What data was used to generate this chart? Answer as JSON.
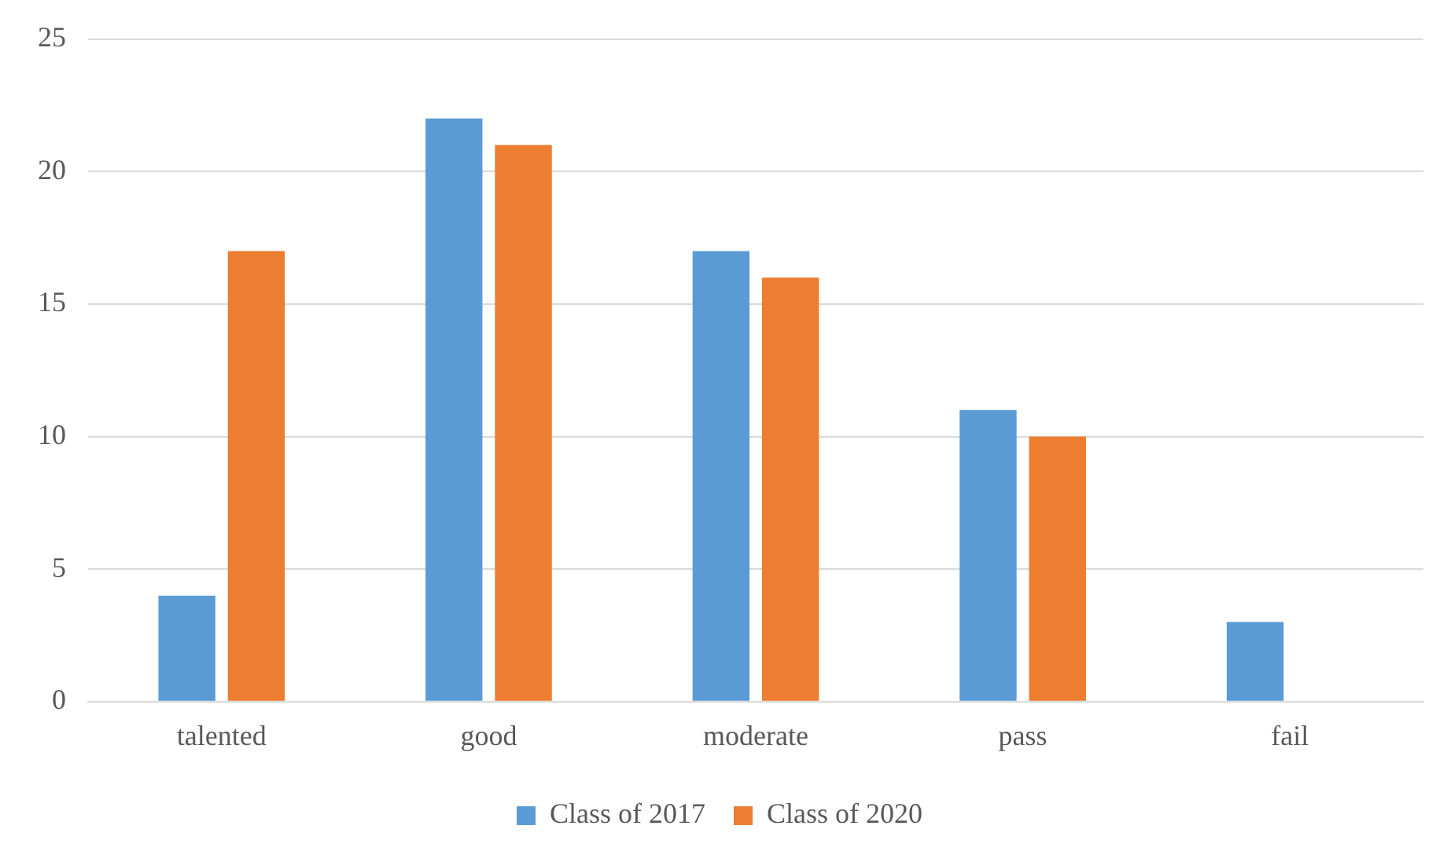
{
  "chart_data": {
    "type": "bar",
    "categories": [
      "talented",
      "good",
      "moderate",
      "pass",
      "fail"
    ],
    "series": [
      {
        "name": "Class of 2017",
        "color": "#5b9bd5",
        "values": [
          4,
          22,
          17,
          11,
          3
        ]
      },
      {
        "name": "Class of 2020",
        "color": "#ed7d31",
        "values": [
          17,
          21,
          16,
          10,
          0
        ]
      }
    ],
    "ylim": [
      0,
      25
    ],
    "yticks": [
      0,
      5,
      10,
      15,
      20,
      25
    ],
    "grid": "y",
    "legend": "bottom"
  }
}
